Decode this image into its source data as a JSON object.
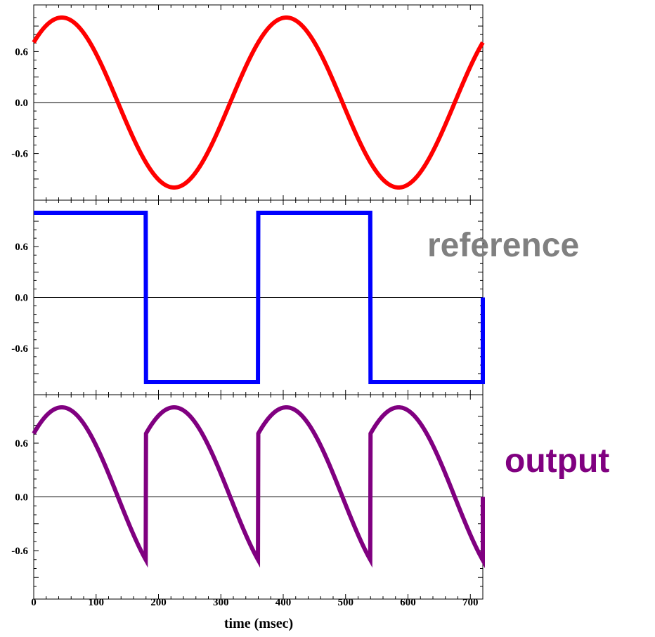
{
  "chart_data": {
    "type": "line",
    "x_unit_label": "time (msec)",
    "xlim": [
      0,
      720
    ],
    "x_ticks": [
      0,
      100,
      200,
      300,
      400,
      500,
      600,
      700
    ],
    "x_tick_labels": [
      "0",
      "100",
      "200",
      "300",
      "400",
      "500",
      "600",
      "700"
    ],
    "panels": [
      {
        "id": "sine",
        "ylim": [
          -1.0,
          1.0
        ],
        "y_ticks": [
          0.6,
          0.0,
          -0.6
        ],
        "y_tick_labels": [
          "0.6",
          "0.0",
          "-0.6"
        ],
        "zero_line": true,
        "series": [
          {
            "color": "#ff0000",
            "formula": "sin",
            "amplitude": 1.0,
            "period": 360,
            "phase_deg": 45,
            "x": [
              0,
              45,
              135,
              225,
              315,
              405,
              495,
              585,
              675,
              720
            ],
            "y": [
              0.71,
              1.0,
              0.0,
              -1.0,
              0.0,
              1.0,
              0.0,
              -1.0,
              0.0,
              0.71
            ]
          }
        ]
      },
      {
        "id": "reference",
        "label": "reference",
        "label_color": "#808080",
        "ylim": [
          -1.0,
          1.0
        ],
        "y_ticks": [
          0.6,
          0.0,
          -0.6
        ],
        "y_tick_labels": [
          "0.6",
          "0.0",
          "-0.6"
        ],
        "zero_line": true,
        "series": [
          {
            "color": "#0000ff",
            "formula": "square",
            "period": 360,
            "x": [
              0,
              180,
              180,
              360,
              360,
              540,
              540,
              720,
              720
            ],
            "y": [
              1,
              1,
              -1,
              -1,
              1,
              1,
              -1,
              -1,
              0
            ]
          }
        ]
      },
      {
        "id": "output",
        "label": "output",
        "label_color": "#800080",
        "ylim": [
          -1.0,
          1.0
        ],
        "y_ticks": [
          0.6,
          0.0,
          -0.6
        ],
        "y_tick_labels": [
          "0.6",
          "0.0",
          "-0.6"
        ],
        "zero_line": true,
        "series": [
          {
            "color": "#800080",
            "formula": "rectified",
            "period": 180,
            "x": [
              0,
              45,
              135,
              180,
              180,
              225,
              315,
              360,
              360,
              405,
              495,
              540,
              540,
              585,
              675,
              720,
              720
            ],
            "y": [
              0.71,
              1.0,
              0.0,
              -0.71,
              0.71,
              1.0,
              0.0,
              -0.71,
              0.71,
              1.0,
              0.0,
              -0.71,
              0.71,
              1.0,
              0.0,
              -0.71,
              0.0
            ]
          }
        ]
      }
    ]
  }
}
